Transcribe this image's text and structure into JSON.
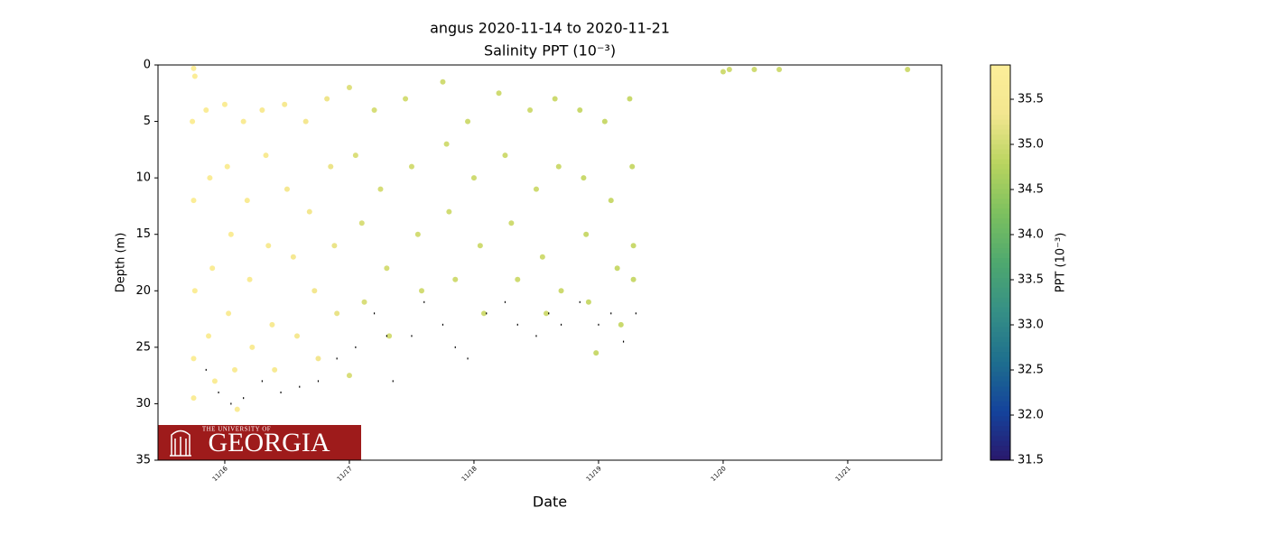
{
  "chart_data": {
    "type": "scatter",
    "title": "angus 2020-11-14 to 2020-11-21",
    "subtitle": "Salinity PPT (10⁻³)",
    "x_label": "Date",
    "y_label": "Depth (m)",
    "colorbar_label": "PPT (10⁻³)",
    "xlim": [
      15.464,
      21.754
    ],
    "xticks": [
      {
        "value": 16,
        "label": "11/16"
      },
      {
        "value": 17,
        "label": "11/17"
      },
      {
        "value": 18,
        "label": "11/18"
      },
      {
        "value": 19,
        "label": "11/19"
      },
      {
        "value": 20,
        "label": "11/20"
      },
      {
        "value": 21,
        "label": "11/21"
      }
    ],
    "ylim": [
      35,
      0
    ],
    "yticks": [
      0,
      5,
      10,
      15,
      20,
      25,
      30,
      35
    ],
    "clim": [
      31.5,
      35.88
    ],
    "cticks": [
      31.5,
      {
        "value": 32,
        "label": "32.0"
      },
      32.5,
      {
        "value": 33,
        "label": "33.0"
      },
      33.5,
      {
        "value": 34,
        "label": "34.0"
      },
      34.5,
      {
        "value": 35,
        "label": "35.0"
      },
      35.5
    ],
    "colormap": [
      "#2a186c",
      "#14439c",
      "#1e6e8e",
      "#358f86",
      "#4ea86f",
      "#7cc05f",
      "#b8d45f",
      "#f2e68f",
      "#fdee99"
    ],
    "series": [
      {
        "x": [
          15.75,
          15.76,
          15.74,
          15.75,
          15.76,
          15.75,
          15.75,
          15.85,
          15.88,
          15.9,
          15.87,
          15.92,
          16.0,
          16.02,
          16.05,
          16.03,
          16.08,
          16.1,
          16.15,
          16.18,
          16.2,
          16.22,
          16.3,
          16.33,
          16.35,
          16.38,
          16.4,
          16.48,
          16.5,
          16.55,
          16.58,
          16.65,
          16.68,
          16.72,
          16.75,
          16.82,
          16.85,
          16.88,
          16.9,
          17.0,
          17.0,
          17.05,
          17.1,
          17.12,
          17.2,
          17.25,
          17.3,
          17.32,
          17.45,
          17.5,
          17.55,
          17.58,
          17.75,
          17.78,
          17.8,
          17.85,
          17.95,
          18.0,
          18.05,
          18.08,
          18.2,
          18.25,
          18.3,
          18.35,
          18.45,
          18.5,
          18.55,
          18.58,
          18.65,
          18.68,
          18.7,
          18.85,
          18.88,
          18.9,
          18.92,
          18.98,
          19.05,
          19.1,
          19.15,
          19.18,
          19.25,
          19.27,
          19.28,
          19.28,
          20.0,
          20.05,
          20.25,
          20.45,
          21.48
        ],
        "y": [
          0.3,
          1.0,
          5,
          12,
          20,
          26,
          29.5,
          4,
          10,
          18,
          24,
          28,
          3.5,
          9,
          15,
          22,
          27,
          30.5,
          5,
          12,
          19,
          25,
          4,
          8,
          16,
          23,
          27,
          3.5,
          11,
          17,
          24,
          5,
          13,
          20,
          26,
          3,
          9,
          16,
          22,
          2,
          27.5,
          8,
          14,
          21,
          4,
          11,
          18,
          24,
          3,
          9,
          15,
          20,
          1.5,
          7,
          13,
          19,
          5,
          10,
          16,
          22,
          2.5,
          8,
          14,
          19,
          4,
          11,
          17,
          22,
          3,
          9,
          20,
          4,
          10,
          15,
          21,
          25.5,
          5,
          12,
          18,
          23,
          3,
          9,
          16,
          19,
          0.6,
          0.4,
          0.4,
          0.4,
          0.4
        ],
        "c": [
          35.8,
          35.8,
          35.78,
          35.78,
          35.78,
          35.78,
          35.75,
          35.75,
          35.75,
          35.74,
          35.74,
          35.73,
          35.72,
          35.72,
          35.71,
          35.7,
          35.7,
          35.7,
          35.68,
          35.67,
          35.67,
          35.66,
          35.62,
          35.62,
          35.6,
          35.6,
          35.58,
          35.52,
          35.5,
          35.48,
          35.47,
          35.42,
          35.4,
          35.38,
          35.36,
          35.3,
          35.28,
          35.26,
          35.25,
          35.15,
          35.1,
          35.12,
          35.1,
          35.1,
          35.08,
          35.07,
          35.06,
          35.05,
          35.05,
          35.04,
          35.04,
          35.03,
          35.02,
          35.02,
          35.02,
          35.01,
          35.0,
          35.0,
          35.0,
          35.0,
          35.0,
          35.0,
          35.0,
          35.0,
          35.0,
          35.0,
          35.0,
          35.0,
          34.98,
          34.98,
          34.98,
          34.95,
          34.95,
          34.95,
          34.95,
          34.95,
          34.95,
          34.95,
          34.95,
          34.95,
          34.95,
          34.95,
          34.95,
          34.95,
          35.0,
          35.0,
          35.0,
          35.0,
          35.0
        ]
      },
      {
        "color": "#000000",
        "x": [
          15.85,
          15.95,
          16.05,
          16.15,
          16.3,
          16.45,
          16.6,
          16.75,
          16.9,
          17.05,
          17.2,
          17.3,
          17.35,
          17.5,
          17.6,
          17.75,
          17.85,
          17.95,
          18.1,
          18.25,
          18.35,
          18.5,
          18.6,
          18.7,
          18.85,
          19.0,
          19.1,
          19.2,
          19.3
        ],
        "y": [
          27,
          29,
          30,
          29.5,
          28,
          29,
          28.5,
          28,
          26,
          25,
          22,
          24,
          28,
          24,
          21,
          23,
          25,
          26,
          22,
          21,
          23,
          24,
          22,
          23,
          21,
          23,
          22,
          24.5,
          22
        ]
      }
    ],
    "logo": {
      "small": "THE UNIVERSITY OF",
      "main": "GEORGIA",
      "color": "#9e1b1b"
    }
  }
}
